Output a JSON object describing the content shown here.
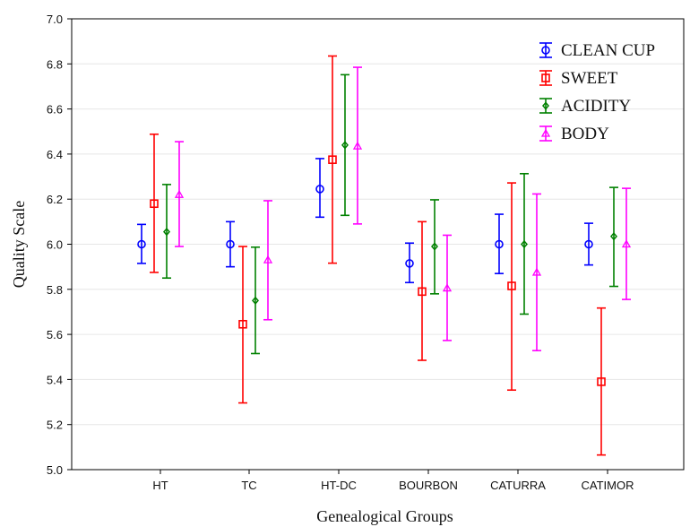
{
  "chart_data": {
    "type": "errorbar",
    "xlabel": "Genealogical Groups",
    "ylabel": "Quality Scale",
    "ylim": [
      5.0,
      7.0
    ],
    "yticks": [
      "5.0",
      "5.2",
      "5.4",
      "5.6",
      "5.8",
      "6.0",
      "6.2",
      "6.4",
      "6.6",
      "6.8",
      "7.0"
    ],
    "categories": [
      "HT",
      "TC",
      "HT-DC",
      "BOURBON",
      "CATURRA",
      "CATIMOR"
    ],
    "grid": true,
    "legend_position": "top-right",
    "series": [
      {
        "name": "CLEAN CUP",
        "color": "#0000ff",
        "marker": "circle",
        "mean": [
          6.0,
          6.0,
          6.245,
          5.915,
          6.0,
          6.0
        ],
        "lower": [
          5.915,
          5.9,
          6.12,
          5.83,
          5.87,
          5.908
        ],
        "upper": [
          6.088,
          6.1,
          6.38,
          6.005,
          6.133,
          6.093
        ]
      },
      {
        "name": "SWEET",
        "color": "#ff0000",
        "marker": "square",
        "mean": [
          6.18,
          5.645,
          6.375,
          5.79,
          5.815,
          5.39
        ],
        "lower": [
          5.875,
          5.296,
          5.916,
          5.485,
          5.353,
          5.065
        ],
        "upper": [
          6.488,
          5.99,
          6.835,
          6.1,
          6.272,
          5.717
        ]
      },
      {
        "name": "ACIDITY",
        "color": "#008000",
        "marker": "diamond",
        "mean": [
          6.055,
          5.75,
          6.44,
          5.99,
          6.0,
          6.035
        ],
        "lower": [
          5.85,
          5.515,
          6.128,
          5.78,
          5.69,
          5.813
        ],
        "upper": [
          6.265,
          5.987,
          6.752,
          6.197,
          6.313,
          6.252
        ]
      },
      {
        "name": "BODY",
        "color": "#ff00ff",
        "marker": "triangle",
        "mean": [
          6.22,
          5.93,
          6.435,
          5.805,
          5.875,
          6.0
        ],
        "lower": [
          5.99,
          5.665,
          6.09,
          5.573,
          5.528,
          5.755
        ],
        "upper": [
          6.455,
          6.193,
          6.785,
          6.04,
          6.223,
          6.248
        ]
      }
    ]
  }
}
